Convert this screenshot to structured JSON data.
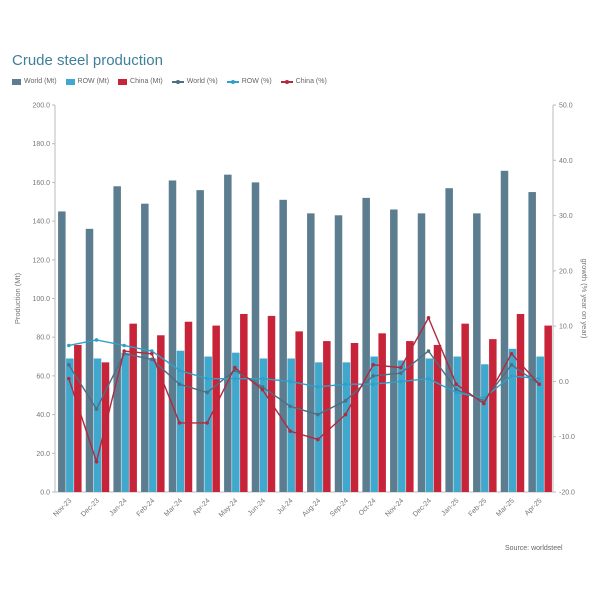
{
  "chart_data": {
    "type": "bar",
    "title": "Crude steel production",
    "ylabel": "Production (Mt)",
    "y2label": "growth (% year on year)",
    "source": "Source: worldsteel",
    "ylim": [
      0,
      200
    ],
    "y2lim": [
      -20,
      50
    ],
    "y_ticks": [
      "0.0",
      "20.0",
      "40.0",
      "60.0",
      "80.0",
      "100.0",
      "120.0",
      "140.0",
      "160.0",
      "180.0",
      "200.0"
    ],
    "y2_ticks": [
      "-20.0",
      "-10.0",
      "0.0",
      "10.0",
      "20.0",
      "30.0",
      "40.0",
      "50.0"
    ],
    "categories": [
      "Nov-23",
      "Dec-23",
      "Jan-24",
      "Feb-24",
      "Mar-24",
      "Apr-24",
      "May-24",
      "Jun-24",
      "Jul-24",
      "Aug-24",
      "Sep-24",
      "Oct-24",
      "Nov-24",
      "Dec-24",
      "Jan-25",
      "Feb-25",
      "Mar-25",
      "Apr-25"
    ],
    "legend": [
      "World (Mt)",
      "ROW (Mt)",
      "China (Mt)",
      "World (%)",
      "ROW (%)",
      "China (%)"
    ],
    "grid": false,
    "legend_position": "top",
    "series": [
      {
        "name": "World (Mt)",
        "kind": "bar",
        "axis": "left",
        "color": "#5b7d8f",
        "values": [
          145,
          136,
          158,
          149,
          161,
          156,
          164,
          160,
          151,
          144,
          143,
          152,
          146,
          144,
          157,
          144,
          166,
          155
        ]
      },
      {
        "name": "ROW (Mt)",
        "kind": "bar",
        "axis": "left",
        "color": "#3fa8cc",
        "values": [
          69,
          69,
          72,
          69,
          73,
          70,
          72,
          69,
          69,
          67,
          67,
          70,
          68,
          69,
          70,
          66,
          74,
          70
        ]
      },
      {
        "name": "China (Mt)",
        "kind": "bar",
        "axis": "left",
        "color": "#c7243a",
        "values": [
          76,
          67,
          87,
          81,
          88,
          86,
          92,
          91,
          83,
          78,
          77,
          82,
          78,
          76,
          87,
          79,
          92,
          86
        ]
      },
      {
        "name": "World (%)",
        "kind": "line",
        "axis": "right",
        "color": "#4e6e82",
        "values": [
          3.0,
          -5.0,
          5.0,
          4.0,
          -0.5,
          -2.0,
          2.0,
          -1.0,
          -4.5,
          -6.0,
          -3.5,
          1.0,
          1.5,
          5.5,
          -1.5,
          -3.5,
          3.0,
          -0.5
        ]
      },
      {
        "name": "ROW (%)",
        "kind": "line",
        "axis": "right",
        "color": "#2fa0c8",
        "values": [
          6.5,
          7.5,
          6.5,
          5.5,
          2.0,
          0.5,
          0.5,
          0.5,
          0.0,
          -1.0,
          -0.5,
          -0.5,
          0.0,
          0.5,
          -2.0,
          -3.0,
          1.0,
          0.5
        ]
      },
      {
        "name": "China (%)",
        "kind": "line",
        "axis": "right",
        "color": "#b02a40",
        "values": [
          0.5,
          -14.5,
          5.5,
          5.0,
          -7.5,
          -7.5,
          2.5,
          -1.5,
          -9.0,
          -10.5,
          -6.0,
          3.0,
          2.5,
          11.5,
          -0.5,
          -4.0,
          5.0,
          -0.5
        ]
      }
    ]
  }
}
